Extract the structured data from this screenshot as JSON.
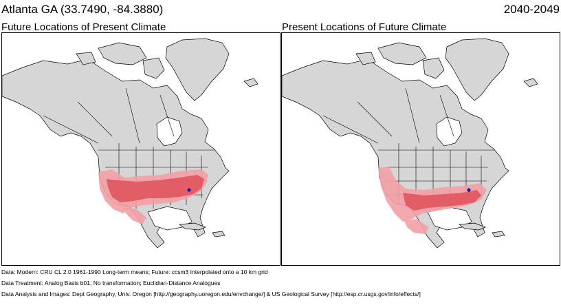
{
  "header": {
    "location": "Atlanta GA  (33.7490, -84.3880)",
    "period": "2040-2049"
  },
  "panels": [
    {
      "title": "Future Locations of Present Climate"
    },
    {
      "title": "Present Locations of Future Climate"
    }
  ],
  "map": {
    "land_color": "#d6d6d6",
    "water_color": "#ffffff",
    "border_color": "#000000",
    "analog_dark_color": "#e0505a",
    "analog_light_color": "#f2a0a4",
    "site_marker_color": "#1a1aa0"
  },
  "footer": {
    "line1": "Data:  Modern: CRU CL 2.0 1961-1990 Long-term means; Future: ccsm3 Interpolated onto a 10 km grid",
    "line2": "Data Treatment:  Analog Basis b01; No transformation; Euclidian-Distance Analogues",
    "line3": "Data Analysis and Images:  Dept Geography, Univ. Oregon [http://geography.uoregon.edu/envchange/] & US Geological Survey [http://esp.cr.usgs.gov/info/effects/]"
  }
}
